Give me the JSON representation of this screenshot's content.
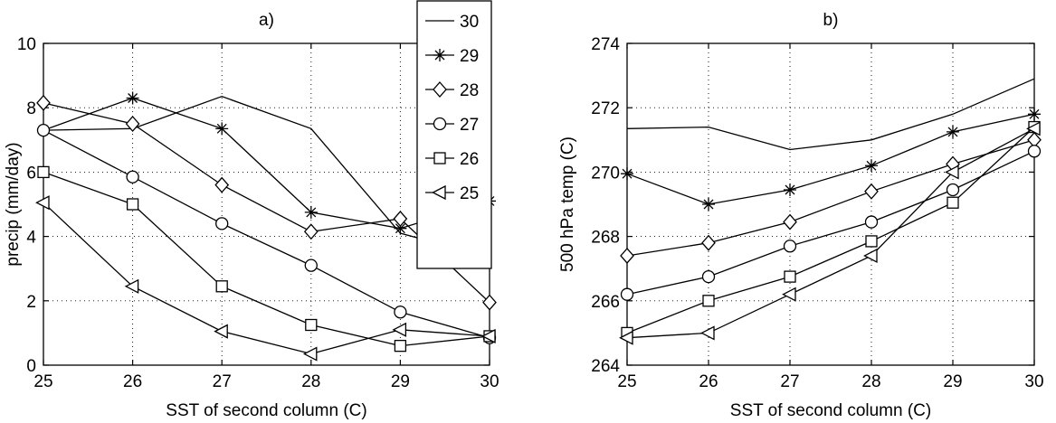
{
  "chart_data": [
    {
      "type": "line",
      "title": "a)",
      "xlabel": "SST of second column (C)",
      "ylabel": "precip (mm/day)",
      "xlim": [
        25,
        30
      ],
      "ylim": [
        0,
        10
      ],
      "xticks": [
        25,
        26,
        27,
        28,
        29,
        30
      ],
      "yticks": [
        0,
        2,
        4,
        6,
        8,
        10
      ],
      "grid": true,
      "legend": "top-right",
      "x": [
        25,
        26,
        27,
        28,
        29,
        30
      ],
      "series": [
        {
          "name": "30",
          "marker": "none",
          "values": [
            7.3,
            7.35,
            8.35,
            7.35,
            4.1,
            3.35
          ]
        },
        {
          "name": "29",
          "marker": "star",
          "values": [
            7.3,
            8.3,
            7.35,
            4.75,
            4.25,
            5.1
          ]
        },
        {
          "name": "28",
          "marker": "diamond",
          "values": [
            8.15,
            7.5,
            5.6,
            4.15,
            4.55,
            1.95
          ]
        },
        {
          "name": "27",
          "marker": "circle",
          "values": [
            7.3,
            5.85,
            4.4,
            3.1,
            1.65,
            0.85
          ]
        },
        {
          "name": "26",
          "marker": "square",
          "values": [
            6.0,
            5.0,
            2.45,
            1.25,
            0.6,
            0.9
          ]
        },
        {
          "name": "25",
          "marker": "triangle-left",
          "values": [
            5.05,
            2.45,
            1.05,
            0.35,
            1.1,
            0.9
          ]
        }
      ]
    },
    {
      "type": "line",
      "title": "b)",
      "xlabel": "SST of second column (C)",
      "ylabel": "500 hPa temp (C)",
      "xlim": [
        25,
        30
      ],
      "ylim": [
        264,
        274
      ],
      "xticks": [
        25,
        26,
        27,
        28,
        29,
        30
      ],
      "yticks": [
        264,
        266,
        268,
        270,
        272,
        274
      ],
      "grid": true,
      "x": [
        25,
        26,
        27,
        28,
        29,
        30
      ],
      "series": [
        {
          "name": "30",
          "marker": "none",
          "values": [
            271.35,
            271.4,
            270.7,
            271.0,
            271.8,
            272.9
          ]
        },
        {
          "name": "29",
          "marker": "star",
          "values": [
            269.95,
            269.0,
            269.45,
            270.2,
            271.25,
            271.8
          ]
        },
        {
          "name": "28",
          "marker": "diamond",
          "values": [
            267.4,
            267.8,
            268.45,
            269.4,
            270.25,
            271.0
          ]
        },
        {
          "name": "27",
          "marker": "circle",
          "values": [
            266.2,
            266.75,
            267.7,
            268.45,
            269.45,
            270.65
          ]
        },
        {
          "name": "26",
          "marker": "square",
          "values": [
            265.0,
            266.0,
            266.75,
            267.85,
            269.05,
            271.4
          ]
        },
        {
          "name": "25",
          "marker": "triangle-left",
          "values": [
            264.85,
            265.0,
            266.2,
            267.4,
            270.0,
            271.35
          ]
        }
      ]
    }
  ]
}
